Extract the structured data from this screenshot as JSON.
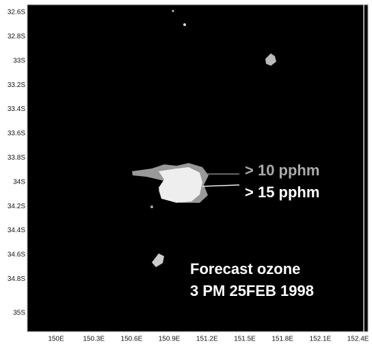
{
  "map": {
    "yticks": [
      "32.6S",
      "32.8S",
      "33S",
      "33.2S",
      "33.4S",
      "33.6S",
      "33.8S",
      "34S",
      "34.2S",
      "34.4S",
      "34.6S",
      "34.8S",
      "35S"
    ],
    "xticks": [
      "150E",
      "150.3E",
      "150.6E",
      "150.9E",
      "151.2E",
      "151.5E",
      "151.8E",
      "152.1E",
      "152.4E"
    ],
    "legend": [
      "> 10 pphm",
      "> 15 pphm"
    ],
    "caption": [
      "Forecast ozone",
      "3 PM 25FEB 1998"
    ]
  }
}
